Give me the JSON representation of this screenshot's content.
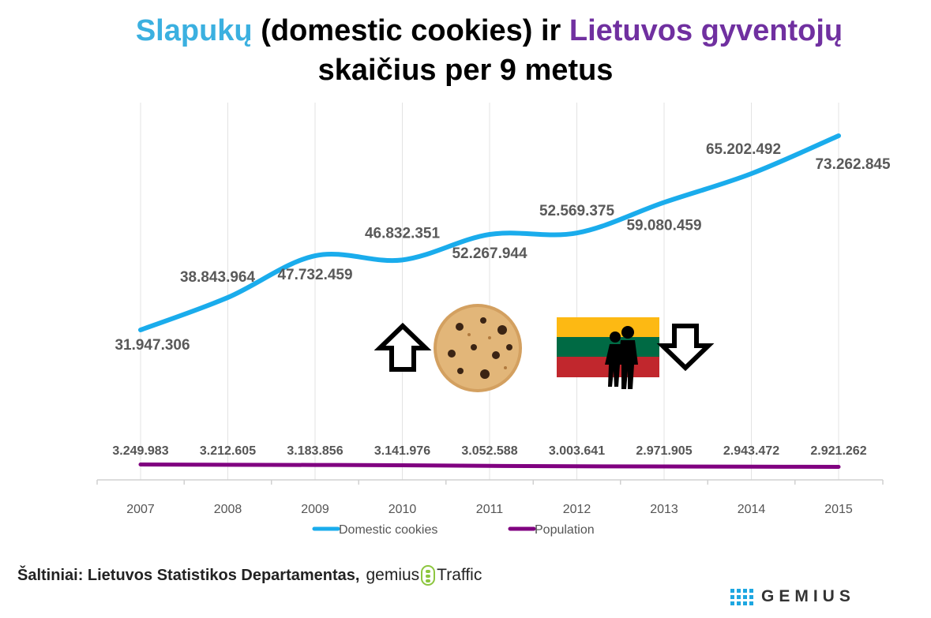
{
  "title": {
    "part1": "Slapukų",
    "part2": " (domestic cookies) ir ",
    "part3": "Lietuvos gyventojų",
    "line2": "skaičius per 9 metus",
    "color1": "#3bb0e0",
    "color3": "#7030a0"
  },
  "chart_data": {
    "type": "line",
    "categories": [
      "2007",
      "2008",
      "2009",
      "2010",
      "2011",
      "2012",
      "2013",
      "2014",
      "2015"
    ],
    "series": [
      {
        "name": "Domestic cookies",
        "color": "#1aacec",
        "values": [
          31947306,
          38843964,
          47732459,
          46832351,
          52267944,
          52569375,
          59080459,
          65202492,
          73262845
        ],
        "labels": [
          "31.947.306",
          "38.843.964",
          "47.732.459",
          "46.832.351",
          "52.267.944",
          "52.569.375",
          "59.080.459",
          "65.202.492",
          "73.262.845"
        ]
      },
      {
        "name": "Population",
        "color": "#800080",
        "values": [
          3249983,
          3212605,
          3183856,
          3141976,
          3052588,
          3003641,
          2971905,
          2943472,
          2921262
        ],
        "labels": [
          "3.249.983",
          "3.212.605",
          "3.183.856",
          "3.141.976",
          "3.052.588",
          "3.003.641",
          "2.971.905",
          "2.943.472",
          "2.921.262"
        ]
      }
    ],
    "legend_position": "bottom",
    "grid": "vertical"
  },
  "decorations": {
    "cookie": "cookie-image",
    "flag": "lithuania-flag-with-people",
    "arrow_up": "up-arrow-icon",
    "arrow_down": "down-arrow-icon",
    "flag_colors": [
      "#fdb913",
      "#006a44",
      "#c1272d"
    ]
  },
  "footer": {
    "source": "Šaltiniai: Lietuvos Statistikos Departamentas,",
    "brand_left": "gemius",
    "brand_right": "Traffic",
    "logo": "GEMIUS"
  }
}
